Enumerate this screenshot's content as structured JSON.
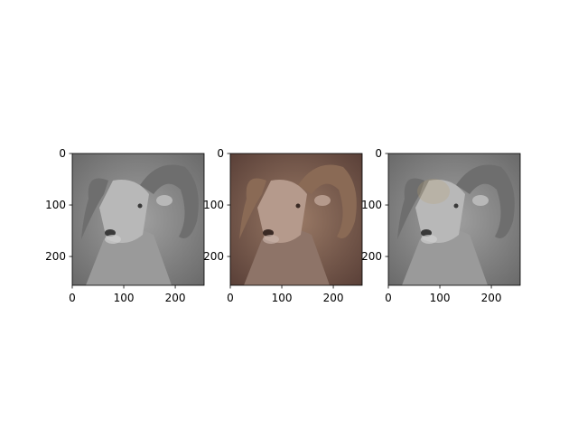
{
  "chart_data": [
    {
      "type": "image",
      "image_name": "ram-photo",
      "rendering": "grayscale",
      "extent": [
        0,
        256
      ],
      "x_ticks": [
        "0",
        "100",
        "200"
      ],
      "y_ticks": [
        "0",
        "100",
        "200"
      ]
    },
    {
      "type": "image",
      "image_name": "ram-photo",
      "rendering": "color",
      "extent": [
        0,
        256
      ],
      "x_ticks": [
        "0",
        "100",
        "200"
      ],
      "y_ticks": [
        "0",
        "100",
        "200"
      ]
    },
    {
      "type": "image",
      "image_name": "ram-photo",
      "rendering": "grayscale with faint color tint near face",
      "extent": [
        0,
        256
      ],
      "x_ticks": [
        "0",
        "100",
        "200"
      ],
      "y_ticks": [
        "0",
        "100",
        "200"
      ]
    }
  ],
  "colors": {
    "axes": "#000000",
    "background_gray": "#8a8a8a",
    "background_color": "#7a6055",
    "horn_gray": "#6e6e6e",
    "horn_color": "#8a6a55",
    "face_gray": "#b8b8b8",
    "face_color": "#b59a8c"
  }
}
